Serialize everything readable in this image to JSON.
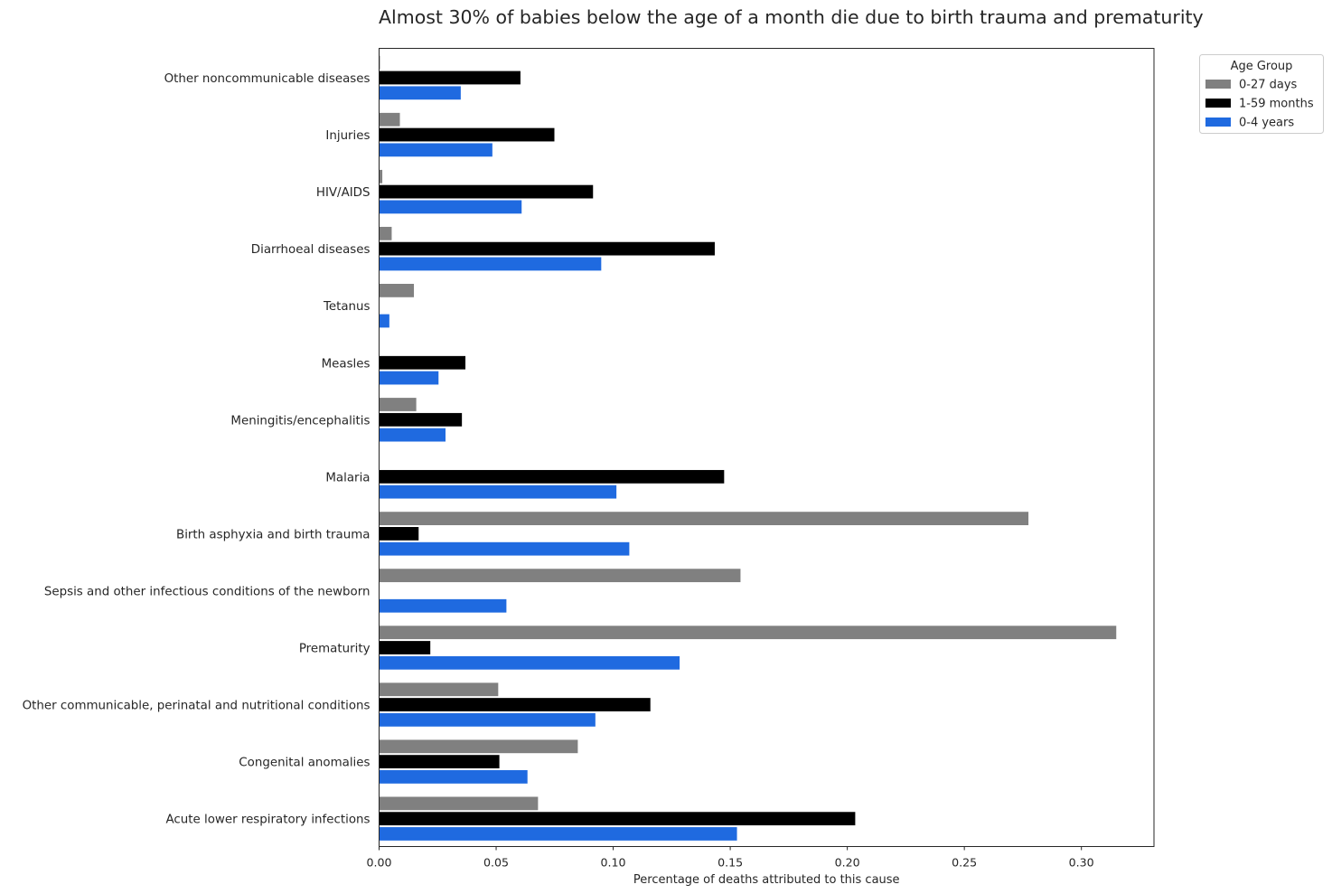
{
  "chart_data": {
    "type": "bar",
    "orientation": "horizontal",
    "title": "Almost 30% of babies below the age of a month die due to birth trauma and prematurity",
    "xlabel": "Percentage of deaths attributed to this cause",
    "ylabel": "",
    "xlim": [
      0,
      0.331
    ],
    "x_ticks": [
      "0.00",
      "0.05",
      "0.10",
      "0.15",
      "0.20",
      "0.25",
      "0.30"
    ],
    "grid": false,
    "legend": {
      "title": "Age Group",
      "placement": "top-right outside"
    },
    "categories": [
      "Other noncommunicable diseases",
      "Injuries",
      "HIV/AIDS",
      "Diarrhoeal diseases",
      "Tetanus",
      "Measles",
      "Meningitis/encephalitis",
      "Malaria",
      "Birth asphyxia and birth trauma",
      "Sepsis and other infectious conditions of the newborn",
      "Prematurity",
      "Other communicable, perinatal and nutritional conditions",
      "Congenital anomalies",
      "Acute lower respiratory infections"
    ],
    "series": [
      {
        "name": "0-27 days",
        "color": "#808080",
        "values": [
          0.0005,
          0.009,
          0.0015,
          0.0055,
          0.015,
          0.0,
          0.016,
          0.0,
          0.2775,
          0.1545,
          0.315,
          0.051,
          0.085,
          0.068
        ]
      },
      {
        "name": "1-59 months",
        "color": "#000000",
        "values": [
          0.0605,
          0.075,
          0.0915,
          0.1435,
          0.0,
          0.037,
          0.0355,
          0.1475,
          0.017,
          0.0,
          0.022,
          0.116,
          0.0515,
          0.2035
        ]
      },
      {
        "name": "0-4 years",
        "color": "#1f6ae0",
        "values": [
          0.035,
          0.0485,
          0.061,
          0.095,
          0.0045,
          0.0255,
          0.0285,
          0.1015,
          0.107,
          0.0545,
          0.1285,
          0.0925,
          0.0635,
          0.153
        ]
      }
    ]
  }
}
